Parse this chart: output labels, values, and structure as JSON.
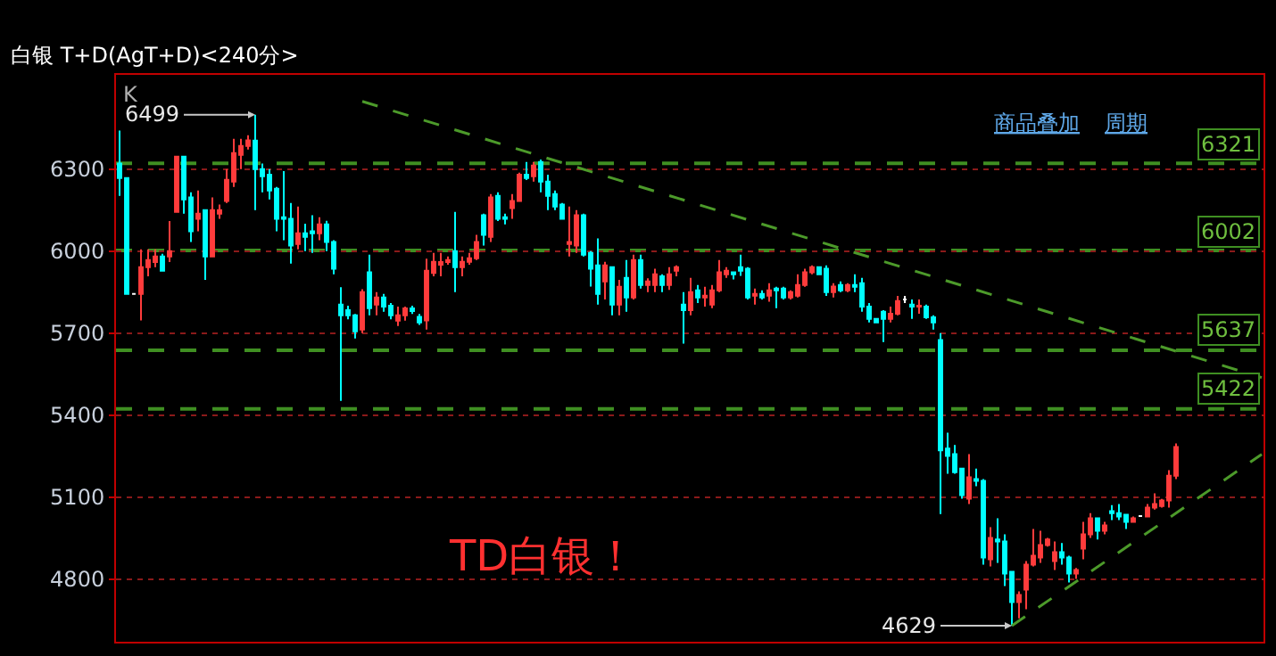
{
  "chart_data": {
    "type": "candlestick",
    "title": "白银 T+D(AgT+D)<240分>",
    "categories": [
      null,
      null,
      null,
      null,
      null,
      null,
      null,
      null,
      null,
      null,
      null,
      null,
      null,
      null,
      null,
      null,
      null,
      null,
      null,
      null,
      null,
      null,
      null,
      null,
      null,
      null,
      null,
      null,
      null,
      null,
      null,
      null,
      null,
      null,
      null,
      null,
      null,
      null,
      null,
      null,
      null,
      null,
      null,
      null,
      null,
      null,
      null,
      null,
      null,
      null,
      null,
      null,
      null,
      null,
      null,
      null,
      null,
      null,
      null,
      null,
      null,
      null,
      null,
      null,
      null,
      null,
      null,
      null,
      null,
      null,
      null,
      null,
      null,
      null,
      null,
      null,
      null,
      null,
      null,
      null,
      null,
      null,
      null,
      null,
      null,
      null,
      null,
      null,
      null,
      null,
      null,
      null,
      null,
      null,
      null,
      null,
      null,
      null,
      null,
      null,
      null,
      null,
      null,
      null,
      null,
      null,
      null,
      null,
      null,
      null,
      null,
      null,
      null,
      null,
      null,
      null,
      null,
      null,
      null,
      null,
      null,
      null,
      null,
      null,
      null,
      null,
      null,
      null,
      null,
      null,
      null,
      null,
      null,
      null,
      null,
      null,
      null,
      null,
      null,
      null,
      null,
      null,
      null,
      null,
      null,
      null,
      null,
      null,
      null,
      null,
      null,
      null,
      null,
      null,
      null,
      null,
      null,
      null,
      null,
      null,
      null
    ],
    "ylim": [
      4570,
      6645
    ],
    "yticks": [
      4800,
      5100,
      5400,
      5700,
      6000,
      6300
    ],
    "grid": "y",
    "tick_labels": "y",
    "legend": false,
    "series": [
      {
        "type": "candlestick",
        "colors": [
          "#00ffff",
          "#00ffff",
          "#ffffff",
          "#ff3c3c",
          "#ff3c3c",
          "#ff3c3c",
          "#00ffff",
          "#ff3c3c",
          "#ff3c3c",
          "#00ffff",
          "#00ffff",
          "#ff3c3c",
          "#00ffff",
          "#ff3c3c",
          "#ff3c3c",
          "#ff3c3c",
          "#ff3c3c",
          "#ff3c3c",
          "#ff3c3c",
          "#00ffff",
          "#00ffff",
          "#00ffff",
          "#00ffff",
          "#00ffff",
          "#00ffff",
          "#ff3c3c",
          "#00ffff",
          "#00ffff",
          "#ff3c3c",
          "#00ffff",
          "#00ffff",
          "#00ffff",
          "#00ffff",
          "#00ffff",
          "#ff3c3c",
          "#00ffff",
          "#ff3c3c",
          "#00ffff",
          "#00ffff",
          "#ff3c3c",
          "#ff3c3c",
          "#00ffff",
          "#00ffff",
          "#ff3c3c",
          "#ff3c3c",
          "#ff3c3c",
          "#ff3c3c",
          "#00ffff",
          "#ff3c3c",
          "#ff3c3c",
          "#ff3c3c",
          "#00ffff",
          "#ff3c3c",
          "#00ffff",
          "#00ffff",
          "#ff3c3c",
          "#ff3c3c",
          "#00ffff",
          "#ff3c3c",
          "#00ffff",
          "#00ffff",
          "#00ffff",
          "#00ffff",
          "#ff3c3c",
          "#ff3c3c",
          "#00ffff",
          "#00ffff",
          "#00ffff",
          "#ff3c3c",
          "#00ffff",
          "#ff3c3c",
          "#00ffff",
          "#ff3c3c",
          "#00ffff",
          "#ff3c3c",
          "#ff3c3c",
          "#00ffff",
          "#ff3c3c",
          "#ff3c3c",
          "#00ffff",
          "#ff3c3c",
          "#00ffff",
          "#ff3c3c",
          "#ff3c3c",
          "#ff3c3c",
          "#ff3c3c",
          "#00ffff",
          "#00ffff",
          "#00ffff",
          "#ff3c3c",
          "#00ffff",
          "#ff3c3c",
          "#00ffff",
          "#00ffff",
          "#ff3c3c",
          "#ff3c3c",
          "#ff3c3c",
          "#ff3c3c",
          "#00ffff",
          "#00ffff",
          "#ff3c3c",
          "#00ffff",
          "#ff3c3c",
          "#00ffff",
          "#00ffff",
          "#00ffff",
          "#00ffff",
          "#00ffff",
          "#ff3c3c",
          "#ff3c3c",
          "#ffffff",
          "#00ffff",
          "#ff3c3c",
          "#00ffff",
          "#00ffff",
          "#00ffff",
          "#00ffff",
          "#00ffff",
          "#00ffff",
          "#ff3c3c",
          "#00ffff",
          "#00ffff",
          "#ff3c3c",
          "#00ffff",
          "#00ffff",
          "#00ffff",
          "#ff3c3c",
          "#ff3c3c",
          "#ff3c3c",
          "#ff3c3c",
          "#ff3c3c",
          "#ff3c3c",
          "#00ffff",
          "#00ffff",
          "#ff3c3c",
          "#ff3c3c",
          "#ff3c3c",
          "#00ffff",
          "#ff3c3c",
          "#00ffff",
          "#00ffff",
          "#00ffff",
          "#ff3c3c",
          "#ffffff",
          "#ff3c3c",
          "#ff3c3c",
          "#ff3c3c",
          "#ff3c3c",
          "#ff3c3c",
          null,
          null,
          null,
          null,
          null,
          null,
          null,
          null,
          null,
          null,
          null,
          null
        ],
        "ohlc": [
          [
            6320,
            6441,
            6202,
            6267
          ],
          [
            6267,
            6267,
            5843,
            5843
          ],
          [
            5843,
            5843,
            5843,
            5843
          ],
          [
            5843,
            6006,
            5746,
            5941
          ],
          [
            5941,
            6006,
            5908,
            5967
          ],
          [
            5960,
            6006,
            5941,
            5980
          ],
          [
            5980,
            5990,
            5928,
            5928
          ],
          [
            5980,
            6110,
            5960,
            6000
          ],
          [
            6143,
            6346,
            6143,
            6346
          ],
          [
            6346,
            6346,
            6137,
            6189
          ],
          [
            6196,
            6215,
            6033,
            6072
          ],
          [
            6118,
            6222,
            6072,
            6137
          ],
          [
            6150,
            6150,
            5895,
            5980
          ],
          [
            5980,
            6196,
            5980,
            6150
          ],
          [
            6137,
            6170,
            6118,
            6150
          ],
          [
            6183,
            6300,
            6176,
            6261
          ],
          [
            6254,
            6411,
            6235,
            6359
          ],
          [
            6352,
            6411,
            6300,
            6385
          ],
          [
            6385,
            6424,
            6372,
            6405
          ],
          [
            6404,
            6499,
            6150,
            6300
          ],
          [
            6300,
            6320,
            6215,
            6274
          ],
          [
            6280,
            6300,
            6189,
            6222
          ],
          [
            6228,
            6235,
            6072,
            6118
          ],
          [
            6124,
            6293,
            6040,
            6118
          ],
          [
            6118,
            6176,
            5954,
            6020
          ],
          [
            6026,
            6163,
            6006,
            6065
          ],
          [
            6065,
            6100,
            6000,
            6052
          ],
          [
            6072,
            6131,
            5993,
            6065
          ],
          [
            6065,
            6124,
            6040,
            6098
          ],
          [
            6098,
            6111,
            6000,
            6033
          ],
          [
            6033,
            6040,
            5915,
            5935
          ],
          [
            5804,
            5868,
            5452,
            5765
          ],
          [
            5784,
            5800,
            5750,
            5765
          ],
          [
            5765,
            5770,
            5680,
            5706
          ],
          [
            5713,
            5860,
            5700,
            5850
          ],
          [
            5922,
            5987,
            5765,
            5791
          ],
          [
            5804,
            5850,
            5765,
            5830
          ],
          [
            5830,
            5843,
            5778,
            5797
          ],
          [
            5800,
            5810,
            5750,
            5765
          ],
          [
            5745,
            5797,
            5726,
            5765
          ],
          [
            5765,
            5797,
            5745,
            5790
          ],
          [
            5790,
            5800,
            5770,
            5780
          ],
          [
            5759,
            5770,
            5730,
            5739
          ],
          [
            5746,
            5972,
            5713,
            5928
          ],
          [
            5920,
            5993,
            5908,
            5961
          ],
          [
            5950,
            5993,
            5908,
            5960
          ],
          [
            5960,
            5980,
            5950,
            5967
          ],
          [
            6000,
            6143,
            5850,
            5941
          ],
          [
            5941,
            5980,
            5908,
            5961
          ],
          [
            5961,
            5993,
            5950,
            5974
          ],
          [
            5974,
            6059,
            5967,
            6033
          ],
          [
            6131,
            6137,
            6020,
            6059
          ],
          [
            6052,
            6209,
            6033,
            6196
          ],
          [
            6202,
            6215,
            6110,
            6118
          ],
          [
            6124,
            6137,
            6098,
            6118
          ],
          [
            6157,
            6209,
            6118,
            6183
          ],
          [
            6183,
            6287,
            6183,
            6280
          ],
          [
            6280,
            6326,
            6260,
            6267
          ],
          [
            6274,
            6326,
            6254,
            6313
          ],
          [
            6326,
            6335,
            6215,
            6254
          ],
          [
            6254,
            6280,
            6150,
            6202
          ],
          [
            6209,
            6222,
            6150,
            6163
          ],
          [
            6170,
            6176,
            6118,
            6118
          ],
          [
            6026,
            6163,
            5980,
            6033
          ],
          [
            6020,
            6150,
            5993,
            6131
          ],
          [
            6131,
            6137,
            5980,
            5987
          ],
          [
            5993,
            6000,
            5870,
            5935
          ],
          [
            5948,
            6046,
            5804,
            5843
          ],
          [
            5889,
            5961,
            5823,
            5948
          ],
          [
            5941,
            5941,
            5765,
            5804
          ],
          [
            5804,
            5895,
            5765,
            5869
          ],
          [
            5902,
            5967,
            5778,
            5830
          ],
          [
            5830,
            5987,
            5823,
            5967
          ],
          [
            5967,
            5987,
            5863,
            5876
          ],
          [
            5876,
            5900,
            5850,
            5889
          ],
          [
            5876,
            5935,
            5850,
            5915
          ],
          [
            5908,
            5915,
            5850,
            5876
          ],
          [
            5876,
            5941,
            5858,
            5915
          ],
          [
            5928,
            5948,
            5908,
            5941
          ],
          [
            5804,
            5850,
            5661,
            5784
          ],
          [
            5784,
            5902,
            5765,
            5850
          ],
          [
            5856,
            5876,
            5810,
            5830
          ],
          [
            5830,
            5869,
            5797,
            5837
          ],
          [
            5804,
            5876,
            5791,
            5856
          ],
          [
            5856,
            5967,
            5850,
            5922
          ],
          [
            5915,
            5941,
            5902,
            5928
          ],
          [
            5922,
            5922,
            5896,
            5915
          ],
          [
            5941,
            5987,
            5909,
            5928
          ],
          [
            5935,
            5941,
            5823,
            5830
          ],
          [
            5837,
            5863,
            5804,
            5843
          ],
          [
            5843,
            5856,
            5823,
            5830
          ],
          [
            5837,
            5882,
            5815,
            5856
          ],
          [
            5863,
            5869,
            5791,
            5856
          ],
          [
            5863,
            5869,
            5823,
            5830
          ],
          [
            5830,
            5856,
            5823,
            5850
          ],
          [
            5837,
            5915,
            5830,
            5876
          ],
          [
            5876,
            5935,
            5869,
            5922
          ],
          [
            5922,
            5948,
            5915,
            5941
          ],
          [
            5941,
            5941,
            5915,
            5915
          ],
          [
            5935,
            5948,
            5836,
            5850
          ],
          [
            5850,
            5882,
            5830,
            5870
          ],
          [
            5876,
            5889,
            5850,
            5856
          ],
          [
            5856,
            5882,
            5850,
            5876
          ],
          [
            5876,
            5915,
            5850,
            5869
          ],
          [
            5882,
            5902,
            5778,
            5797
          ],
          [
            5797,
            5810,
            5739,
            5752
          ],
          [
            5752,
            5752,
            5739,
            5739
          ],
          [
            5778,
            5784,
            5667,
            5752
          ],
          [
            5752,
            5797,
            5739,
            5771
          ],
          [
            5771,
            5836,
            5765,
            5817
          ],
          [
            5823,
            5836,
            5810,
            5823
          ],
          [
            5804,
            5823,
            5752,
            5797
          ],
          [
            5797,
            5823,
            5771,
            5800
          ],
          [
            5797,
            5804,
            5752,
            5758
          ],
          [
            5758,
            5765,
            5713,
            5739
          ],
          [
            5674,
            5700,
            5037,
            5271
          ],
          [
            5277,
            5335,
            5185,
            5250
          ],
          [
            5257,
            5290,
            5185,
            5191
          ],
          [
            5204,
            5204,
            5094,
            5107
          ],
          [
            5094,
            5257,
            5074,
            5172
          ],
          [
            5165,
            5204,
            5139,
            5159
          ],
          [
            5159,
            5165,
            4852,
            4878
          ],
          [
            4872,
            4989,
            4846,
            4950
          ],
          [
            4944,
            5022,
            4859,
            4937
          ],
          [
            4937,
            4963,
            4774,
            4820
          ],
          [
            4826,
            4826,
            4629,
            4715
          ],
          [
            4715,
            4754,
            4656,
            4741
          ],
          [
            4761,
            4865,
            4689,
            4852
          ],
          [
            4852,
            4983,
            4846,
            4885
          ],
          [
            4878,
            4976,
            4859,
            4924
          ],
          [
            4924,
            4950,
            4918,
            4944
          ],
          [
            4865,
            4937,
            4833,
            4898
          ],
          [
            4898,
            4931,
            4852,
            4878
          ],
          [
            4878,
            4885,
            4787,
            4820
          ],
          [
            4820,
            4840,
            4800,
            4833
          ],
          [
            4911,
            5009,
            4872,
            4963
          ],
          [
            4963,
            5041,
            4950,
            5022
          ],
          [
            5022,
            5022,
            4944,
            4976
          ],
          [
            4976,
            5009,
            4963,
            4996
          ],
          [
            5048,
            5070,
            5015,
            5041
          ],
          [
            5041,
            5074,
            5015,
            5028
          ],
          [
            5035,
            5035,
            4983,
            5009
          ],
          [
            5009,
            5028,
            5009,
            5022
          ],
          [
            5030,
            5030,
            5030,
            5030
          ],
          [
            5028,
            5074,
            5028,
            5061
          ],
          [
            5061,
            5113,
            5054,
            5074
          ],
          [
            5067,
            5093,
            5061,
            5087
          ],
          [
            5087,
            5198,
            5061,
            5178
          ],
          [
            5178,
            5296,
            5165,
            5283
          ],
          null,
          null,
          null,
          null,
          null,
          null,
          null,
          null,
          null,
          null,
          null,
          null
        ]
      },
      {
        "type": "line",
        "values": [
          null,
          null,
          null,
          null,
          null,
          null,
          null,
          null,
          null,
          null,
          null,
          null,
          null,
          null,
          null,
          null,
          null,
          null,
          null,
          null,
          null,
          null,
          null,
          null,
          null,
          null,
          null,
          null,
          null,
          null,
          null,
          null,
          null,
          null,
          6548,
          null,
          null,
          null,
          null,
          null,
          null,
          null,
          null,
          null,
          null,
          null,
          null,
          null,
          null,
          null,
          null,
          null,
          null,
          null,
          null,
          null,
          null,
          null,
          null,
          null,
          null,
          null,
          null,
          null,
          null,
          null,
          null,
          null,
          null,
          null,
          null,
          null,
          null,
          null,
          null,
          null,
          null,
          null,
          null,
          null,
          null,
          null,
          null,
          null,
          null,
          null,
          null,
          null,
          null,
          null,
          null,
          null,
          null,
          null,
          null,
          null,
          null,
          null,
          null,
          null,
          null,
          null,
          null,
          null,
          null,
          null,
          null,
          null,
          null,
          null,
          null,
          null,
          null,
          null,
          null,
          null,
          null,
          null,
          null,
          null,
          null,
          null,
          null,
          null,
          null,
          null,
          null,
          null,
          null,
          null,
          null,
          null,
          null,
          null,
          null,
          null,
          null,
          null,
          null,
          null,
          null,
          null,
          null,
          null,
          null,
          null,
          null,
          null,
          null,
          null,
          null,
          null,
          null,
          null,
          null,
          null,
          null,
          null,
          null,
          null,
          5537
        ],
        "color": "#4c9a2a",
        "line_style": "dashed"
      },
      {
        "type": "line",
        "values": [
          null,
          null,
          null,
          null,
          null,
          null,
          null,
          null,
          null,
          null,
          null,
          null,
          null,
          null,
          null,
          null,
          null,
          null,
          null,
          null,
          null,
          null,
          null,
          null,
          null,
          null,
          null,
          null,
          null,
          null,
          null,
          null,
          null,
          null,
          null,
          null,
          null,
          null,
          null,
          null,
          null,
          null,
          null,
          null,
          null,
          null,
          null,
          null,
          null,
          null,
          null,
          null,
          null,
          null,
          null,
          null,
          null,
          null,
          null,
          null,
          null,
          null,
          null,
          null,
          null,
          null,
          null,
          null,
          null,
          null,
          null,
          null,
          null,
          null,
          null,
          null,
          null,
          null,
          null,
          null,
          null,
          null,
          null,
          null,
          null,
          null,
          null,
          null,
          null,
          null,
          null,
          null,
          null,
          null,
          null,
          null,
          null,
          null,
          null,
          null,
          null,
          null,
          null,
          null,
          null,
          null,
          null,
          null,
          null,
          null,
          null,
          null,
          null,
          null,
          null,
          null,
          null,
          null,
          null,
          null,
          null,
          null,
          null,
          null,
          null,
          4629,
          null,
          null,
          null,
          null,
          null,
          null,
          null,
          null,
          null,
          null,
          null,
          null,
          null,
          null,
          null,
          null,
          null,
          null,
          null,
          null,
          null,
          null,
          null,
          null,
          null,
          null,
          null,
          null,
          null,
          null,
          null,
          null,
          null,
          null,
          5256
        ],
        "color": "#4c9a2a",
        "line_style": "dashed"
      }
    ],
    "ref_lines": [
      {
        "axis": "y",
        "value": 6321,
        "label": "6321",
        "color": "#3f8f22",
        "line_style": "dashed"
      },
      {
        "axis": "y",
        "value": 6002,
        "label": "6002",
        "color": "#3f8f22",
        "line_style": "dashed"
      },
      {
        "axis": "y",
        "value": 5637,
        "label": "5637",
        "color": "#3f8f22",
        "line_style": "dashed"
      },
      {
        "axis": "y",
        "value": 5422,
        "label": "5422",
        "color": "#3f8f22",
        "line_style": "dashed"
      }
    ],
    "annotations": [
      "6499",
      "4629",
      "K",
      "TD白银！",
      "商品叠加",
      "周期"
    ]
  }
}
